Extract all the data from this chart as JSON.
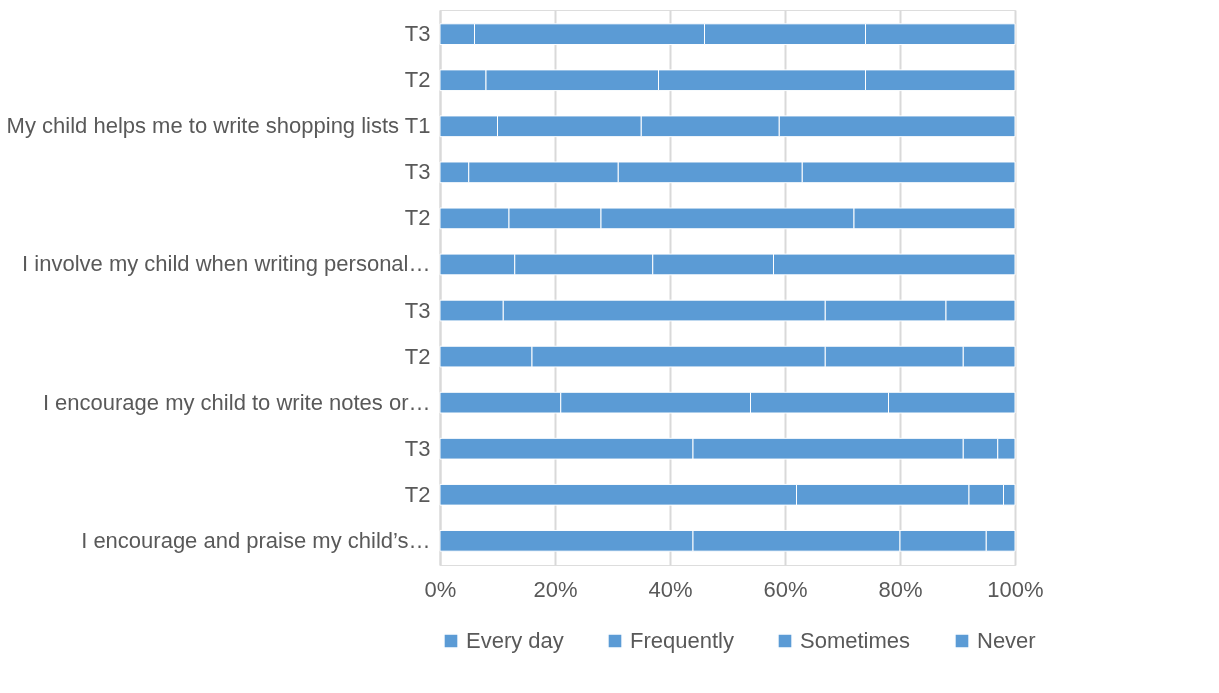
{
  "chart_data": {
    "type": "bar",
    "orientation": "horizontal",
    "stacked": true,
    "categories": [
      "T3",
      "T2",
      "My child helps me to write shopping lists T1",
      "T3",
      "T2",
      "I involve my child when writing personal…",
      "T3",
      "T2",
      "I encourage my child to write notes or…",
      "T3",
      "T2",
      "I encourage and praise my child’s…"
    ],
    "series": [
      {
        "name": "Every day",
        "color": "#5b9bd5",
        "values": [
          6,
          8,
          10,
          5,
          12,
          13,
          11,
          16,
          21,
          44,
          62,
          44
        ]
      },
      {
        "name": "Frequently",
        "color": "#5b9bd5",
        "values": [
          40,
          30,
          25,
          26,
          16,
          24,
          56,
          51,
          33,
          47,
          30,
          36
        ]
      },
      {
        "name": "Sometimes",
        "color": "#5b9bd5",
        "values": [
          28,
          36,
          24,
          32,
          44,
          21,
          21,
          24,
          24,
          6,
          6,
          15
        ]
      },
      {
        "name": "Never",
        "color": "#5b9bd5",
        "values": [
          26,
          26,
          41,
          37,
          28,
          42,
          12,
          9,
          22,
          3,
          2,
          5
        ]
      }
    ],
    "xlim": [
      0,
      100
    ],
    "xticks": [
      {
        "value": 0,
        "label": "0%"
      },
      {
        "value": 20,
        "label": "20%"
      },
      {
        "value": 40,
        "label": "40%"
      },
      {
        "value": 60,
        "label": "60%"
      },
      {
        "value": 80,
        "label": "80%"
      },
      {
        "value": 100,
        "label": "100%"
      }
    ],
    "grid": "x",
    "legend": "bottom"
  }
}
